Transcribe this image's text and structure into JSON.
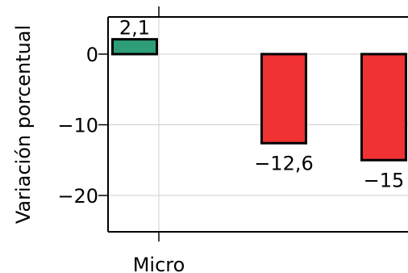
{
  "chart_data": {
    "type": "bar",
    "title": "",
    "xlabel": "",
    "ylabel": "Variación porcentual",
    "categories": [
      "Micro",
      "",
      ""
    ],
    "values": [
      2.1,
      -12.6,
      -15
    ],
    "value_labels": [
      "2,1",
      "−12,6",
      "−15"
    ],
    "ylim": [
      -25,
      5
    ],
    "yticks": [
      0,
      -10,
      -20
    ],
    "ytick_labels": [
      "0",
      "−10",
      "−20"
    ],
    "colors": [
      "#2e9e78",
      "#f03232",
      "#f03232"
    ],
    "grid": true
  }
}
